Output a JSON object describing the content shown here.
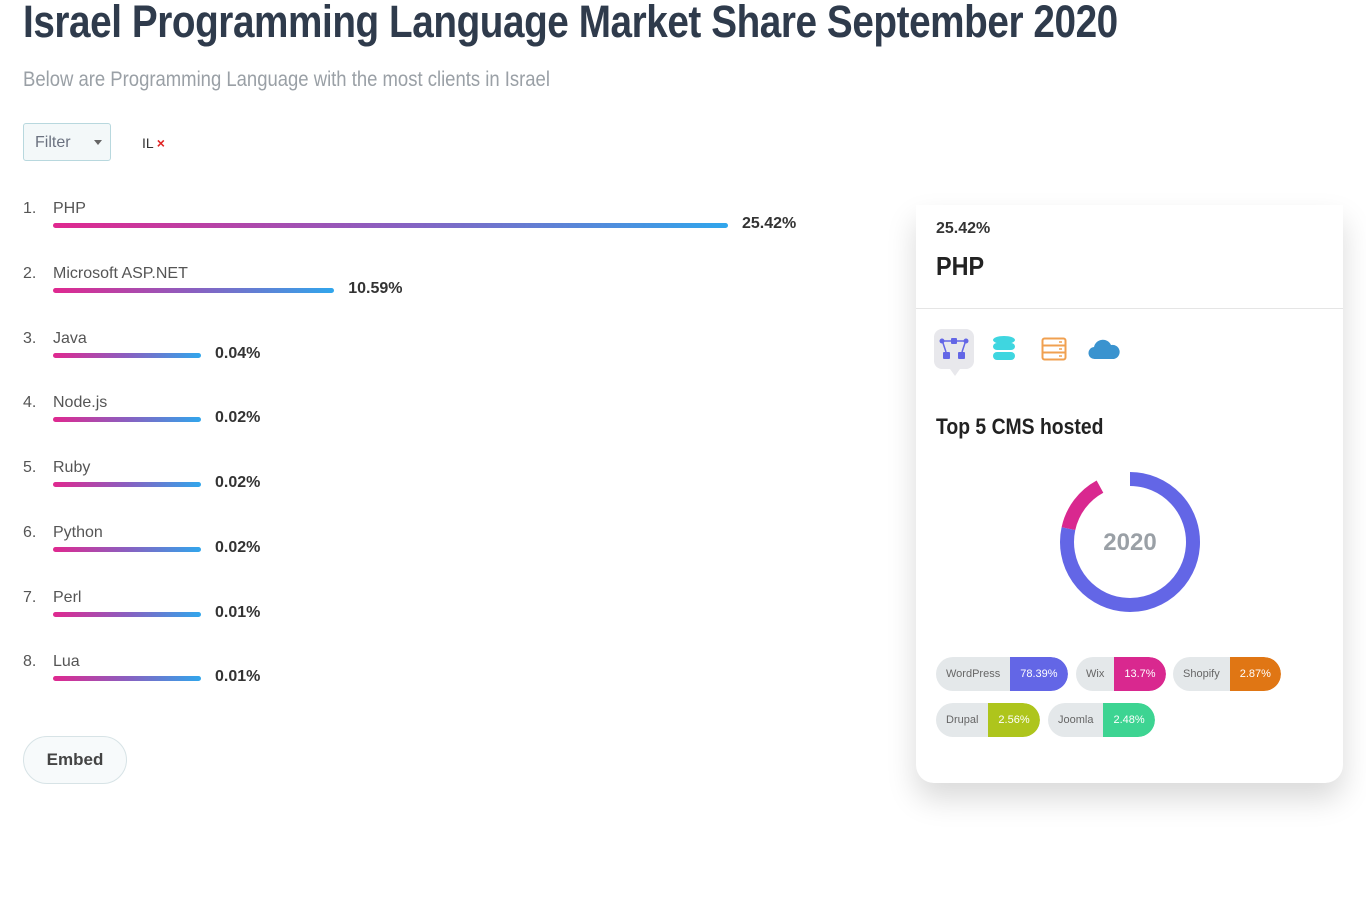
{
  "title": "Israel Programming Language Market Share September 2020",
  "subtitle": "Below are Programming Language with the most clients in Israel",
  "filter": {
    "label": "Filter",
    "tag": "IL",
    "remove": "×"
  },
  "embed_label": "Embed",
  "chart_data": {
    "type": "bar",
    "orientation": "horizontal",
    "max": 25.42,
    "categories": [
      "PHP",
      "Microsoft ASP.NET",
      "Java",
      "Node.js",
      "Ruby",
      "Python",
      "Perl",
      "Lua"
    ],
    "ranks": [
      "1.",
      "2.",
      "3.",
      "4.",
      "5.",
      "6.",
      "7.",
      "8."
    ],
    "values": [
      25.42,
      10.59,
      0.04,
      0.02,
      0.02,
      0.02,
      0.01,
      0.01
    ],
    "labels": [
      "25.42%",
      "10.59%",
      "0.04%",
      "0.02%",
      "0.02%",
      "0.02%",
      "0.01%",
      "0.01%"
    ]
  },
  "card": {
    "percent": "25.42%",
    "name": "PHP",
    "icons": [
      "network-icon",
      "database-icon",
      "server-icon",
      "cloud-icon"
    ],
    "cms_title": "Top 5 CMS hosted",
    "center_label": "2020",
    "cms": [
      {
        "name": "WordPress",
        "value": 78.39,
        "label": "78.39%",
        "color": "#6366e6"
      },
      {
        "name": "Wix",
        "value": 13.7,
        "label": "13.7%",
        "color": "#d9288f"
      },
      {
        "name": "Shopify",
        "value": 2.87,
        "label": "2.87%",
        "color": "#e07614"
      },
      {
        "name": "Drupal",
        "value": 2.56,
        "label": "2.56%",
        "color": "#aec51c"
      },
      {
        "name": "Joomla",
        "value": 2.48,
        "label": "2.48%",
        "color": "#3dd492"
      }
    ]
  }
}
